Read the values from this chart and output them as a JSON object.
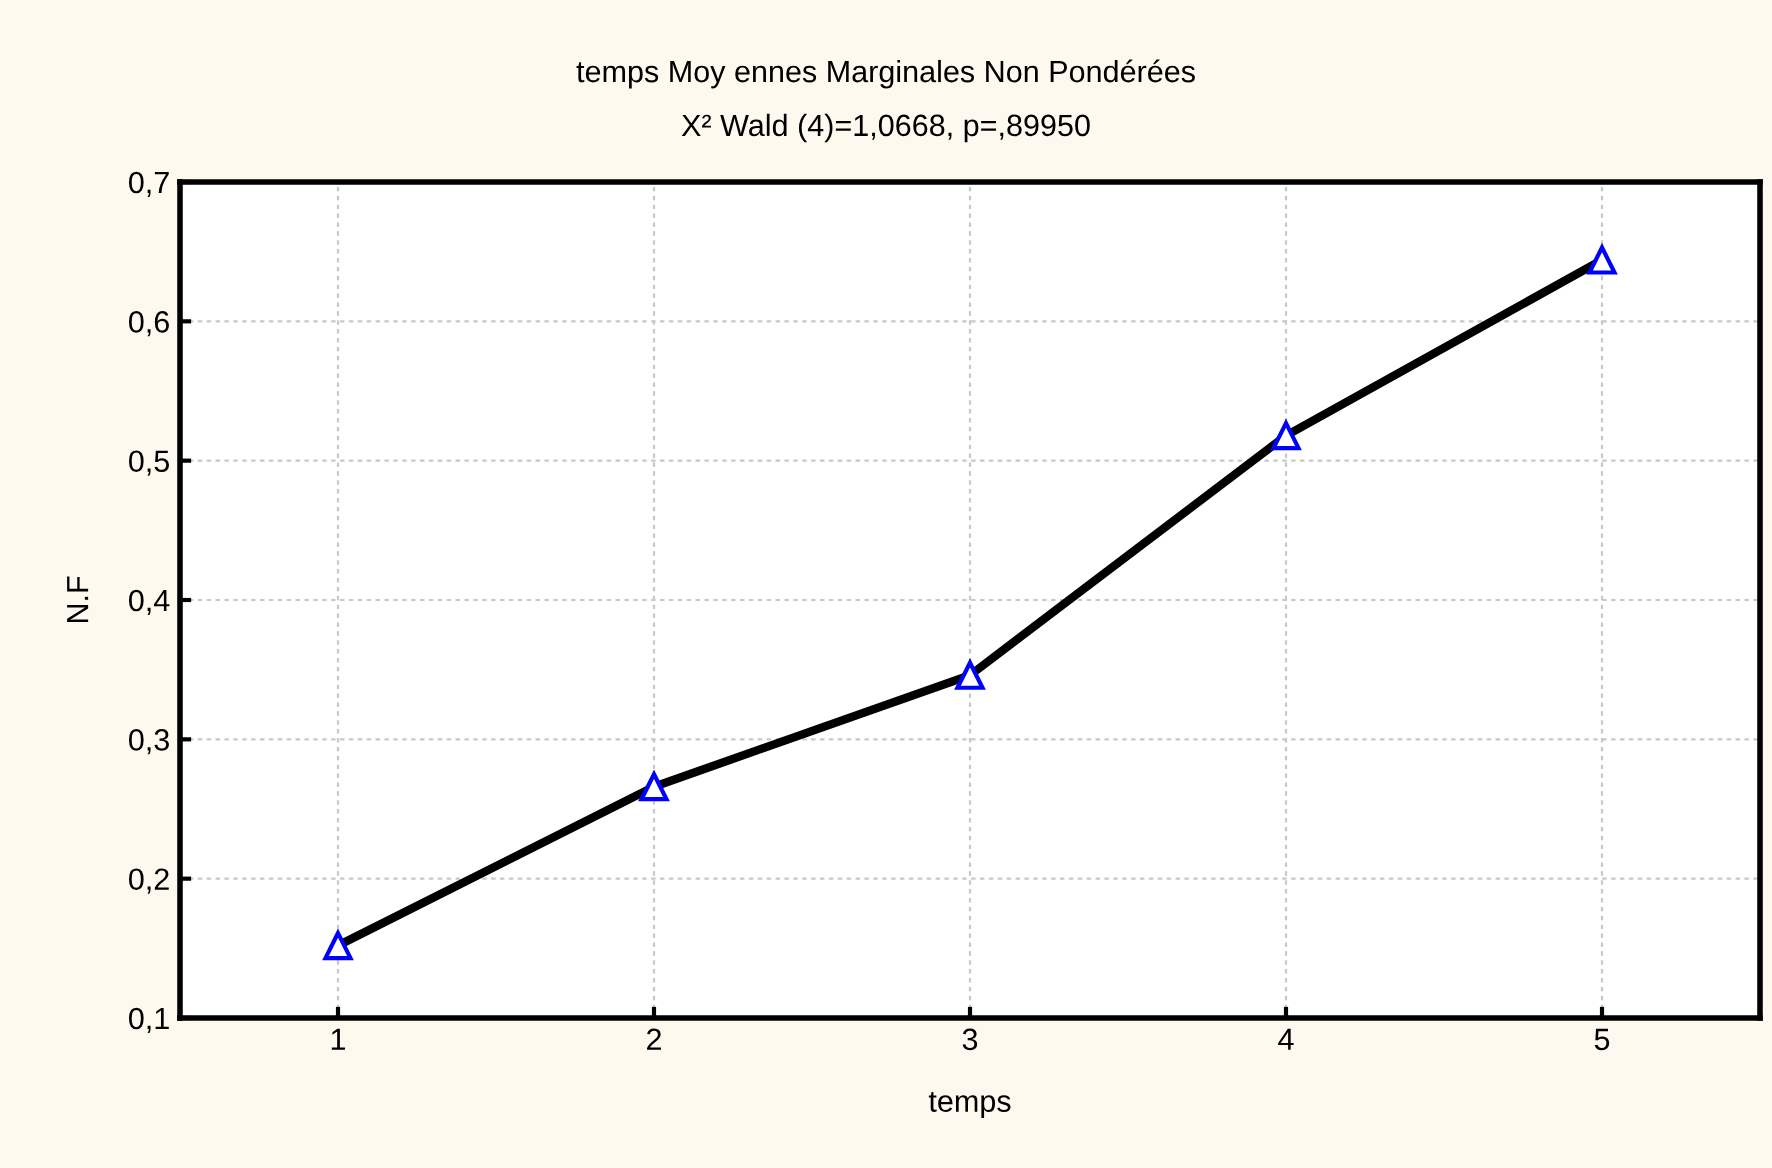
{
  "chart_data": {
    "type": "line",
    "title": "temps Moy ennes Marginales Non Pondérées",
    "subtitle": "X² Wald (4)=1,0668, p=,89950",
    "xlabel": "temps",
    "ylabel": "N.F",
    "x": [
      1,
      2,
      3,
      4,
      5
    ],
    "series": [
      {
        "color": "#000000",
        "values": [
          0.152,
          0.266,
          0.346,
          0.518,
          0.644
        ]
      }
    ],
    "xlim": [
      0.5,
      5.5
    ],
    "xticks": [
      1,
      2,
      3,
      4,
      5
    ],
    "ylim": [
      0.1,
      0.7
    ],
    "yticks": [
      {
        "value": 0.1,
        "label": "0,1"
      },
      {
        "value": 0.2,
        "label": "0,2"
      },
      {
        "value": 0.3,
        "label": "0,3"
      },
      {
        "value": 0.4,
        "label": "0,4"
      },
      {
        "value": 0.5,
        "label": "0,5"
      },
      {
        "value": 0.6,
        "label": "0,6"
      },
      {
        "value": 0.7,
        "label": "0,7"
      }
    ],
    "grid": true,
    "marker": "triangle",
    "line_style": "solid"
  }
}
